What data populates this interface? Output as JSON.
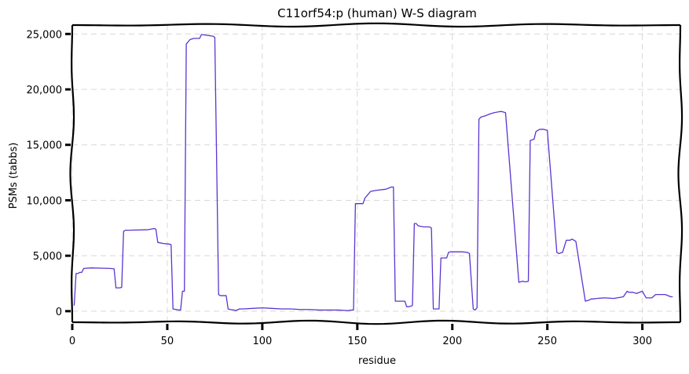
{
  "chart_data": {
    "type": "line",
    "title": "C11orf54:p (human) W-S diagram",
    "xlabel": "residue",
    "ylabel": "PSMs (tabbs)",
    "xlim": [
      0,
      320
    ],
    "ylim": [
      -1000,
      25800
    ],
    "x_ticks": [
      0,
      50,
      100,
      150,
      200,
      250,
      300
    ],
    "y_ticks": [
      0,
      5000,
      10000,
      15000,
      20000,
      25000
    ],
    "x_tick_labels": [
      "0",
      "50",
      "100",
      "150",
      "200",
      "250",
      "300"
    ],
    "y_tick_labels": [
      "0",
      "5,000",
      "10,000",
      "15,000",
      "20,000",
      "25,000"
    ],
    "grid": true,
    "color": "#5b35d0",
    "series": [
      {
        "x": [
          1,
          2,
          3,
          4,
          5,
          6,
          10,
          15,
          20,
          22,
          23,
          25,
          26,
          27,
          28,
          30,
          40,
          43,
          44,
          45,
          48,
          51,
          52,
          53,
          56,
          57,
          58,
          59,
          60,
          62,
          64,
          67,
          68,
          70,
          74,
          75,
          77,
          78,
          81,
          82,
          83,
          85,
          86,
          88,
          90,
          95,
          100,
          105,
          110,
          115,
          120,
          125,
          130,
          135,
          140,
          145,
          147,
          148,
          149,
          150,
          152,
          153,
          154,
          156,
          157,
          160,
          165,
          168,
          169,
          170,
          171,
          172,
          175,
          176,
          177,
          179,
          180,
          181,
          182,
          185,
          188,
          189,
          190,
          191,
          193,
          194,
          195,
          197,
          198,
          199,
          205,
          208,
          209,
          211,
          212,
          213,
          214,
          215,
          216,
          217,
          220,
          222,
          225,
          226,
          228,
          235,
          237,
          238,
          239,
          240,
          241,
          243,
          244,
          245,
          246,
          248,
          250,
          255,
          256,
          257,
          258,
          260,
          262,
          263,
          265,
          270,
          272,
          273,
          274,
          276,
          280,
          285,
          290,
          292,
          293,
          295,
          297,
          300,
          302,
          303,
          305,
          307,
          310,
          312,
          315,
          316
        ],
        "values": [
          500,
          3400,
          3400,
          3500,
          3500,
          3850,
          3900,
          3880,
          3850,
          3820,
          2100,
          2100,
          2150,
          7200,
          7300,
          7300,
          7350,
          7450,
          7400,
          6200,
          6100,
          6050,
          6000,
          200,
          100,
          100,
          1800,
          1800,
          24100,
          24500,
          24600,
          24600,
          24950,
          24900,
          24800,
          24700,
          1500,
          1400,
          1400,
          200,
          150,
          100,
          50,
          200,
          200,
          250,
          300,
          250,
          200,
          200,
          150,
          150,
          100,
          100,
          100,
          50,
          100,
          100,
          9700,
          9700,
          9700,
          9700,
          10200,
          10600,
          10800,
          10900,
          11000,
          11200,
          11200,
          900,
          900,
          900,
          900,
          400,
          400,
          500,
          7900,
          7900,
          7700,
          7600,
          7600,
          7500,
          200,
          200,
          200,
          4800,
          4800,
          4800,
          5300,
          5350,
          5350,
          5300,
          5200,
          200,
          100,
          300,
          17300,
          17500,
          17550,
          17600,
          17800,
          17900,
          18000,
          18000,
          17900,
          2600,
          2700,
          2650,
          2650,
          2700,
          15400,
          15500,
          16200,
          16300,
          16400,
          16400,
          16300,
          5300,
          5200,
          5250,
          5300,
          6400,
          6400,
          6500,
          6300,
          900,
          1000,
          1100,
          1100,
          1150,
          1200,
          1150,
          1300,
          1800,
          1700,
          1700,
          1600,
          1800,
          1200,
          1200,
          1200,
          1500,
          1500,
          1500,
          1300,
          1300
        ]
      }
    ]
  }
}
